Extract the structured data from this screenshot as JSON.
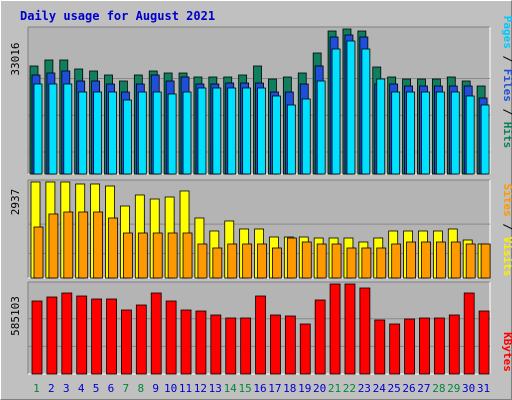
{
  "title": "Daily usage for August 2021",
  "colors": {
    "background": "#c0c0c0",
    "panel": "#b4b4b4",
    "title": "#0000cc",
    "hits": "#0f7f5f",
    "files": "#1f4fd8",
    "pages": "#00e0ff",
    "visits": "#ffff00",
    "sites": "#ff9900",
    "kbytes": "#ff0000",
    "weekend_day": "#00883b",
    "weekday": "#0000cc"
  },
  "panels": {
    "top_max_label": "33016",
    "mid_max_label": "2937",
    "bottom_max_label": "585103"
  },
  "legend": {
    "top": [
      {
        "text": "Pages",
        "color": "#00c8ff"
      },
      {
        "text": " / ",
        "color": "#000000"
      },
      {
        "text": "Files",
        "color": "#1f4fd8"
      },
      {
        "text": " / ",
        "color": "#000000"
      },
      {
        "text": "Hits",
        "color": "#0f7f5f"
      }
    ],
    "mid": [
      {
        "text": "Sites",
        "color": "#ff9900"
      },
      {
        "text": " / ",
        "color": "#000000"
      },
      {
        "text": "Visits",
        "color": "#ffee00"
      }
    ],
    "bottom": [
      {
        "text": "KBytes",
        "color": "#ff0000"
      }
    ]
  },
  "chart_data": {
    "type": "bar",
    "categories": [
      "1",
      "2",
      "3",
      "4",
      "5",
      "6",
      "7",
      "8",
      "9",
      "10",
      "11",
      "12",
      "13",
      "14",
      "15",
      "16",
      "17",
      "18",
      "19",
      "20",
      "21",
      "22",
      "23",
      "24",
      "25",
      "26",
      "27",
      "28",
      "29",
      "30",
      "31"
    ],
    "weekend_days": [
      "1",
      "7",
      "8",
      "14",
      "15",
      "21",
      "22",
      "28",
      "29"
    ],
    "panels": [
      {
        "name": "top",
        "max": 33016,
        "series": [
          {
            "name": "Hits",
            "values": [
              24650,
              25850,
              25850,
              23800,
              23400,
              22550,
              21250,
              22450,
              23400,
              23000,
              23000,
              22150,
              22150,
              22150,
              22550,
              24650,
              21700,
              22150,
              22950,
              27600,
              32550,
              33016,
              32550,
              24250,
              22150,
              21700,
              21700,
              21700,
              22150,
              21250,
              20000
            ]
          },
          {
            "name": "Files",
            "values": [
              22450,
              22950,
              23400,
              21250,
              21250,
              20400,
              18700,
              20400,
              22550,
              21250,
              22150,
              20400,
              20400,
              20800,
              20800,
              20800,
              18700,
              18700,
              20400,
              24650,
              31300,
              31700,
              31300,
              20400,
              20400,
              20000,
              20000,
              20000,
              20000,
              20000,
              17400
            ]
          },
          {
            "name": "Pages",
            "values": [
              20400,
              20400,
              20400,
              18700,
              18700,
              18700,
              16950,
              18700,
              18700,
              18300,
              18700,
              19550,
              19550,
              19550,
              19550,
              19550,
              17850,
              15750,
              17000,
              21250,
              28500,
              30200,
              28500,
              21700,
              18700,
              18700,
              18700,
              18700,
              18700,
              17850,
              15750
            ]
          }
        ]
      },
      {
        "name": "middle",
        "max": 2937,
        "series": [
          {
            "name": "Visits",
            "values": [
              2937,
              2937,
              2937,
              2880,
              2880,
              2822,
              2188,
              2535,
              2420,
              2477,
              2650,
              1844,
              1440,
              1729,
              1498,
              1498,
              1267,
              1267,
              1267,
              1210,
              1210,
              1210,
              1095,
              1210,
              1440,
              1440,
              1440,
              1440,
              1498,
              1152,
              1037
            ]
          },
          {
            "name": "Sites",
            "values": [
              1556,
              1960,
              2016,
              2016,
              2016,
              1844,
              1383,
              1383,
              1383,
              1383,
              1383,
              1037,
              922,
              1037,
              1037,
              1037,
              922,
              1210,
              1095,
              1037,
              1037,
              922,
              922,
              922,
              1037,
              1095,
              1095,
              1095,
              1095,
              1037,
              1037
            ]
          }
        ]
      },
      {
        "name": "bottom",
        "max": 585103,
        "series": [
          {
            "name": "KBytes",
            "values": [
              471500,
              497800,
              524000,
              506600,
              489100,
              489100,
              419200,
              445400,
              524000,
              471500,
              419200,
              410400,
              384200,
              367000,
              367000,
              506600,
              384200,
              375400,
              323000,
              480200,
              585103,
              585103,
              558800,
              349300,
              323000,
              358200,
              367000,
              367000,
              384200,
              524000,
              410400
            ]
          }
        ]
      }
    ]
  }
}
